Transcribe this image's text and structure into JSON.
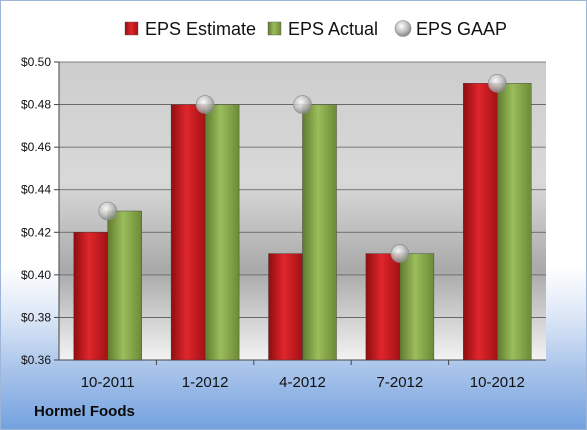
{
  "chart_data": {
    "type": "bar",
    "categories": [
      "10-2011",
      "1-2012",
      "4-2012",
      "7-2012",
      "10-2012"
    ],
    "series": [
      {
        "name": "EPS Estimate",
        "kind": "bar",
        "color": "#c8161d",
        "values": [
          0.42,
          0.48,
          0.41,
          0.41,
          0.49
        ]
      },
      {
        "name": "EPS Actual",
        "kind": "bar",
        "color": "#8aaa4e",
        "values": [
          0.43,
          0.48,
          0.48,
          0.41,
          0.49
        ]
      },
      {
        "name": "EPS GAAP",
        "kind": "marker",
        "color": "#b4b4b4",
        "values": [
          0.43,
          0.48,
          0.48,
          0.41,
          0.49
        ]
      }
    ],
    "ylim": [
      0.36,
      0.5
    ],
    "yticks": [
      0.36,
      0.38,
      0.4,
      0.42,
      0.44,
      0.46,
      0.48,
      0.5
    ],
    "ytick_labels": [
      "$0.36",
      "$0.38",
      "$0.40",
      "$0.42",
      "$0.44",
      "$0.46",
      "$0.48",
      "$0.50"
    ],
    "grid": true,
    "legend_position": "top"
  },
  "footer": {
    "company": "Hormel Foods"
  }
}
